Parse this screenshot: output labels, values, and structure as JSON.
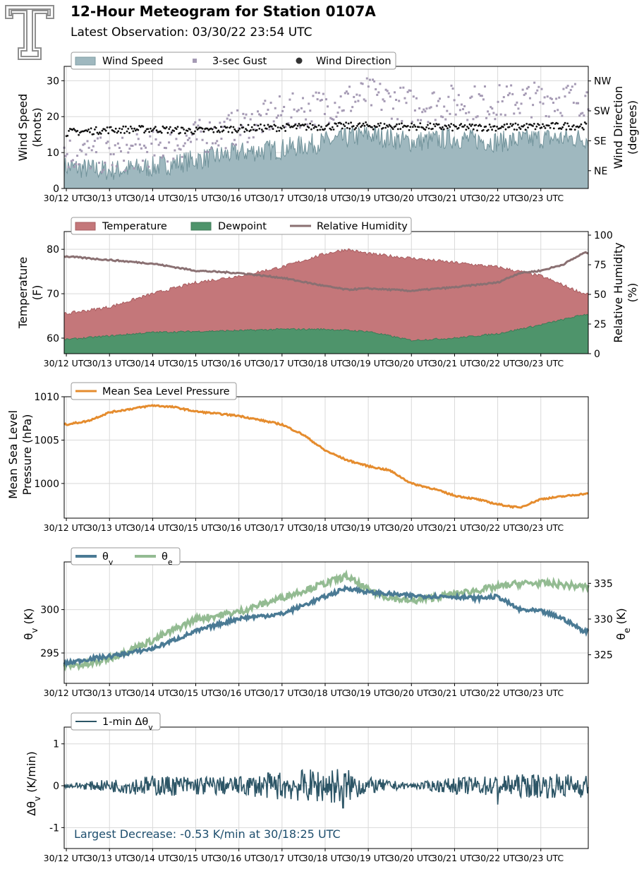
{
  "header": {
    "title": "12-Hour Meteogram for Station 0107A",
    "subtitle": "Latest Observation: 03/30/22 23:54 UTC",
    "logo": "texas-tech-double-t-logo"
  },
  "colors": {
    "wind_speed": "#9fb8bf",
    "wind_speed_line": "#6f9199",
    "gust": "#a59ab4",
    "wind_dir": "#111111",
    "temperature": "#c4777a",
    "dewpoint": "#4e946b",
    "rh": "#8a7072",
    "rh_dark": "#6e3a3a",
    "pressure": "#e58c2e",
    "theta_v": "#4a7a94",
    "theta_e": "#93bb92",
    "dtheta": "#2c5566",
    "annotation": "#1f4f6e"
  },
  "x_ticks": [
    "30/12 UTC",
    "30/13 UTC",
    "30/14 UTC",
    "30/15 UTC",
    "30/16 UTC",
    "30/17 UTC",
    "30/18 UTC",
    "30/19 UTC",
    "30/20 UTC",
    "30/21 UTC",
    "30/22 UTC",
    "30/23 UTC"
  ],
  "chart_data": [
    {
      "type": "area",
      "ylabel": "Wind Speed\n(knots)",
      "ylabel2": "Wind Direction\n(degrees)",
      "ylim": [
        0,
        34
      ],
      "yticks": [
        0,
        10,
        20,
        30
      ],
      "y2ticks": [
        "NE",
        "SE",
        "SW",
        "NW"
      ],
      "grid": true,
      "legend_position": "top-left",
      "legend": [
        "Wind Speed",
        "3-sec Gust",
        "Wind Direction"
      ],
      "series": [
        {
          "name": "Wind Speed",
          "x": [
            12.0,
            13.0,
            14.0,
            15.0,
            16.0,
            17.0,
            18.0,
            19.0,
            20.0,
            21.0,
            22.0,
            23.0,
            24.0
          ],
          "values": [
            6,
            5,
            6,
            8,
            10,
            11,
            13,
            15,
            13,
            14,
            13,
            14,
            14
          ]
        },
        {
          "name": "3-sec Gust",
          "x": [
            12.0,
            13.0,
            14.0,
            15.0,
            16.0,
            17.0,
            18.0,
            19.0,
            20.0,
            21.0,
            22.0,
            23.0,
            24.0
          ],
          "values": [
            9,
            8,
            10,
            13,
            16,
            20,
            22,
            25,
            22,
            23,
            23,
            24,
            24
          ]
        },
        {
          "name": "Wind Direction",
          "x": [
            12.0,
            13.0,
            14.0,
            15.0,
            16.0,
            17.0,
            18.0,
            19.0,
            20.0,
            21.0,
            22.0,
            23.0,
            24.0
          ],
          "values": [
            160,
            168,
            170,
            165,
            172,
            175,
            178,
            180,
            178,
            175,
            176,
            178,
            180
          ]
        }
      ]
    },
    {
      "type": "area",
      "ylabel": "Temperature\n(F)",
      "ylabel2": "Relative Humidity\n(%)",
      "ylim": [
        56.5,
        84
      ],
      "yticks": [
        60,
        70,
        80
      ],
      "y2lim": [
        0,
        103
      ],
      "y2ticks": [
        0,
        25,
        50,
        75,
        100
      ],
      "grid": true,
      "legend_position": "top-left",
      "legend": [
        "Temperature",
        "Dewpoint",
        "Relative Humidity"
      ],
      "series": [
        {
          "name": "Temperature",
          "x": [
            12.0,
            13.0,
            14.0,
            15.0,
            16.0,
            17.0,
            18.0,
            18.5,
            19.0,
            20.0,
            21.0,
            22.0,
            22.5,
            23.0,
            24.0
          ],
          "values": [
            65.5,
            67,
            70,
            72.5,
            74,
            76,
            79,
            80,
            79,
            78,
            77,
            76,
            75,
            74,
            70
          ]
        },
        {
          "name": "Dewpoint",
          "x": [
            12.0,
            13.0,
            14.0,
            15.0,
            16.0,
            17.0,
            18.0,
            19.0,
            20.0,
            21.0,
            22.0,
            23.0,
            24.0
          ],
          "values": [
            59.7,
            60.5,
            61.3,
            61.5,
            61.7,
            62,
            62,
            61.5,
            59.5,
            60,
            61,
            63,
            65.3
          ]
        },
        {
          "name": "Relative Humidity",
          "x": [
            12.0,
            13.0,
            14.0,
            15.0,
            16.0,
            17.0,
            18.0,
            18.5,
            19.0,
            20.0,
            21.0,
            22.0,
            22.5,
            23.0,
            23.5,
            24.0
          ],
          "values": [
            82,
            79,
            76,
            70,
            68,
            64,
            57,
            54,
            55,
            53,
            56,
            60,
            68,
            70,
            75,
            85
          ]
        }
      ]
    },
    {
      "type": "line",
      "ylabel": "Mean Sea Level\nPressure (hPa)",
      "ylim": [
        996,
        1010
      ],
      "yticks": [
        1000,
        1005,
        1010
      ],
      "grid": true,
      "legend_position": "top-left",
      "legend": [
        "Mean Sea Level Pressure"
      ],
      "series": [
        {
          "name": "Mean Sea Level Pressure",
          "x": [
            12.0,
            12.5,
            13.0,
            14.0,
            14.5,
            15.0,
            16.0,
            17.0,
            17.5,
            18.0,
            18.5,
            19.0,
            19.5,
            20.0,
            20.5,
            21.0,
            21.5,
            22.0,
            22.5,
            23.0,
            23.5,
            24.0
          ],
          "values": [
            1006.8,
            1007.2,
            1008.2,
            1009,
            1008.8,
            1008.3,
            1007.8,
            1006.8,
            1005.6,
            1003.8,
            1002.7,
            1002,
            1001.5,
            1000,
            999.4,
            998.6,
            998.2,
            997.6,
            997.2,
            998.2,
            998.5,
            998.8
          ]
        }
      ]
    },
    {
      "type": "line",
      "ylabel": "θv (K)",
      "ylabel2": "θe (K)",
      "ylim": [
        291.5,
        305.5
      ],
      "yticks": [
        295,
        300
      ],
      "y2lim": [
        321,
        338
      ],
      "y2ticks": [
        325,
        330,
        335
      ],
      "grid": true,
      "legend_position": "top-left",
      "legend": [
        "θv",
        "θe"
      ],
      "series": [
        {
          "name": "θv",
          "x": [
            12.0,
            12.5,
            13.0,
            14.0,
            15.0,
            16.0,
            17.0,
            18.0,
            18.5,
            19.0,
            20.0,
            21.0,
            21.5,
            22.0,
            22.5,
            23.0,
            23.5,
            24.0
          ],
          "values": [
            293.8,
            294.3,
            294.6,
            295.5,
            297.5,
            299,
            299.5,
            301.5,
            302.5,
            302,
            301.6,
            301.5,
            301.3,
            301.5,
            300,
            299.8,
            299,
            297.5
          ]
        },
        {
          "name": "θe",
          "x": [
            12.0,
            12.5,
            13.0,
            14.0,
            15.0,
            16.0,
            17.0,
            18.0,
            18.5,
            19.0,
            19.5,
            20.0,
            21.0,
            21.5,
            22.0,
            22.5,
            23.0,
            23.5,
            24.0
          ],
          "values": [
            323.5,
            323.6,
            324.5,
            327,
            330,
            331,
            333,
            335,
            336,
            334,
            333,
            332.5,
            333.5,
            334,
            334.5,
            335,
            335,
            334.8,
            334.5
          ]
        }
      ]
    },
    {
      "type": "line",
      "ylabel": "Δθv (K/min)",
      "ylim": [
        -1.5,
        1.4
      ],
      "yticks": [
        -1,
        0,
        1
      ],
      "grid": true,
      "legend_position": "top-left",
      "legend": [
        "1-min Δθv"
      ],
      "annotation": "Largest Decrease: -0.53 K/min at 30/18:25 UTC",
      "series": [
        {
          "name": "1-min Δθv",
          "x": [
            12.0,
            13.0,
            14.0,
            15.0,
            16.0,
            17.0,
            18.0,
            18.42,
            19.0,
            20.0,
            21.0,
            22.0,
            23.0,
            24.0
          ],
          "values": [
            0.0,
            0.0,
            0.1,
            0.05,
            0.05,
            0.1,
            0.15,
            -0.53,
            0.05,
            0.0,
            0.05,
            -0.45,
            0.05,
            0.0
          ]
        }
      ]
    }
  ]
}
